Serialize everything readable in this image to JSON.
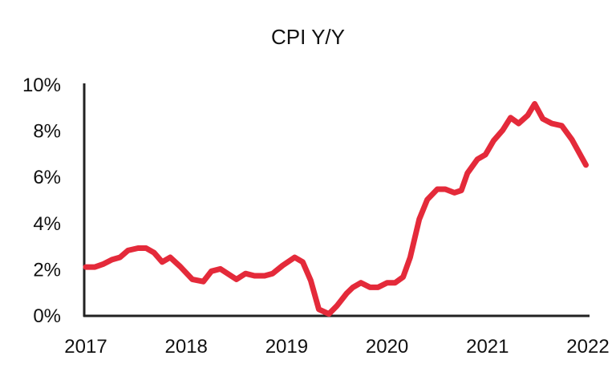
{
  "chart_data": {
    "type": "line",
    "title": "CPI Y/Y",
    "xlabel": "",
    "ylabel": "",
    "xlim": [
      2017,
      2022
    ],
    "ylim": [
      0,
      10
    ],
    "x_ticks": [
      "2017",
      "2018",
      "2019",
      "2020",
      "2021",
      "2022"
    ],
    "y_ticks": [
      "0%",
      "2%",
      "4%",
      "6%",
      "8%",
      "10%"
    ],
    "grid": false,
    "line_color": "#e42a3a",
    "series": [
      {
        "x": [
          2017.0,
          2017.09,
          2017.17,
          2017.26,
          2017.34,
          2017.42,
          2017.52,
          2017.6,
          2017.68,
          2017.76,
          2017.84,
          2017.94,
          2018.06,
          2018.17,
          2018.25,
          2018.34,
          2018.5,
          2018.59,
          2018.68,
          2018.78,
          2018.86,
          2018.96,
          2019.08,
          2019.16,
          2019.24,
          2019.32,
          2019.42,
          2019.5,
          2019.6,
          2019.66,
          2019.74,
          2019.83,
          2019.91,
          2020.0,
          2020.08,
          2020.16,
          2020.23,
          2020.32,
          2020.4,
          2020.5,
          2020.58,
          2020.67,
          2020.74,
          2020.8,
          2020.9,
          2020.98,
          2021.06,
          2021.15,
          2021.23,
          2021.31,
          2021.4,
          2021.47,
          2021.55,
          2021.64,
          2021.74,
          2021.84,
          2021.98
        ],
        "y": [
          2.08,
          2.08,
          2.2,
          2.4,
          2.5,
          2.8,
          2.9,
          2.9,
          2.7,
          2.3,
          2.5,
          2.1,
          1.55,
          1.45,
          1.9,
          2.0,
          1.55,
          1.8,
          1.7,
          1.7,
          1.8,
          2.15,
          2.5,
          2.3,
          1.5,
          0.25,
          0.05,
          0.4,
          0.95,
          1.2,
          1.4,
          1.2,
          1.2,
          1.4,
          1.4,
          1.65,
          2.5,
          4.15,
          5.0,
          5.45,
          5.45,
          5.3,
          5.4,
          6.15,
          6.75,
          6.95,
          7.55,
          8.0,
          8.55,
          8.3,
          8.65,
          9.15,
          8.5,
          8.3,
          8.2,
          7.6,
          6.5
        ]
      }
    ]
  }
}
